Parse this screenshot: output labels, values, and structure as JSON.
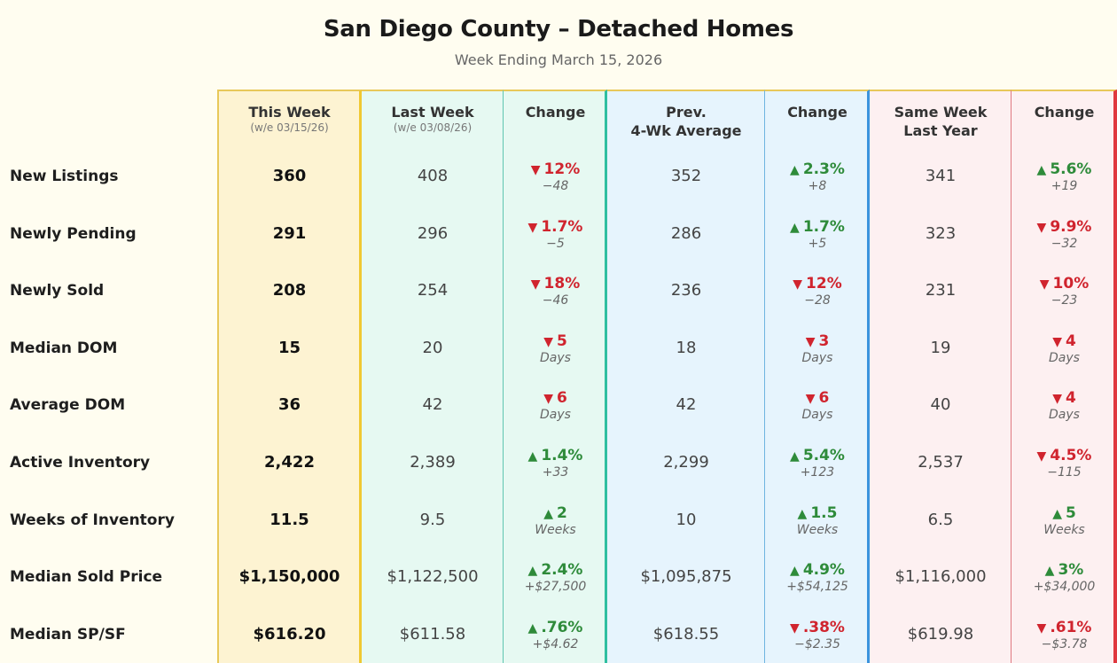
{
  "title": "San Diego County – Detached Homes",
  "subtitle": "Week Ending March 15, 2026",
  "colors": {
    "up": "#2e8b3a",
    "down": "#d0242e"
  },
  "columns": {
    "this_week": {
      "label": "This Week",
      "sub": "(w/e 03/15/26)"
    },
    "last_week": {
      "label": "Last Week",
      "sub": "(w/e 03/08/26)"
    },
    "change1": {
      "label": "Change"
    },
    "prev_avg": {
      "line1": "Prev.",
      "line2": "4-Wk Average"
    },
    "change2": {
      "label": "Change"
    },
    "same_week": {
      "line1": "Same Week",
      "line2": "Last Year"
    },
    "change3": {
      "label": "Change"
    }
  },
  "rows": [
    {
      "label": "New Listings",
      "this_week": "360",
      "last_week": "408",
      "chg1": {
        "dir": "down",
        "arrow": "▼",
        "main": "12%",
        "diff": "−48"
      },
      "prev_avg": "352",
      "chg2": {
        "dir": "up",
        "arrow": "▲",
        "main": "2.3%",
        "diff": "+8"
      },
      "same_week": "341",
      "chg3": {
        "dir": "up",
        "arrow": "▲",
        "main": "5.6%",
        "diff": "+19"
      }
    },
    {
      "label": "Newly Pending",
      "this_week": "291",
      "last_week": "296",
      "chg1": {
        "dir": "down",
        "arrow": "▼",
        "main": "1.7%",
        "diff": "−5"
      },
      "prev_avg": "286",
      "chg2": {
        "dir": "up",
        "arrow": "▲",
        "main": "1.7%",
        "diff": "+5"
      },
      "same_week": "323",
      "chg3": {
        "dir": "down",
        "arrow": "▼",
        "main": "9.9%",
        "diff": "−32"
      }
    },
    {
      "label": "Newly Sold",
      "this_week": "208",
      "last_week": "254",
      "chg1": {
        "dir": "down",
        "arrow": "▼",
        "main": "18%",
        "diff": "−46"
      },
      "prev_avg": "236",
      "chg2": {
        "dir": "down",
        "arrow": "▼",
        "main": "12%",
        "diff": "−28"
      },
      "same_week": "231",
      "chg3": {
        "dir": "down",
        "arrow": "▼",
        "main": "10%",
        "diff": "−23"
      }
    },
    {
      "label": "Median DOM",
      "this_week": "15",
      "last_week": "20",
      "chg1": {
        "dir": "down",
        "arrow": "▼",
        "main": "5",
        "diff": "Days"
      },
      "prev_avg": "18",
      "chg2": {
        "dir": "down",
        "arrow": "▼",
        "main": "3",
        "diff": "Days"
      },
      "same_week": "19",
      "chg3": {
        "dir": "down",
        "arrow": "▼",
        "main": "4",
        "diff": "Days"
      }
    },
    {
      "label": "Average DOM",
      "this_week": "36",
      "last_week": "42",
      "chg1": {
        "dir": "down",
        "arrow": "▼",
        "main": "6",
        "diff": "Days"
      },
      "prev_avg": "42",
      "chg2": {
        "dir": "down",
        "arrow": "▼",
        "main": "6",
        "diff": "Days"
      },
      "same_week": "40",
      "chg3": {
        "dir": "down",
        "arrow": "▼",
        "main": "4",
        "diff": "Days"
      }
    },
    {
      "label": "Active Inventory",
      "this_week": "2,422",
      "last_week": "2,389",
      "chg1": {
        "dir": "up",
        "arrow": "▲",
        "main": "1.4%",
        "diff": "+33"
      },
      "prev_avg": "2,299",
      "chg2": {
        "dir": "up",
        "arrow": "▲",
        "main": "5.4%",
        "diff": "+123"
      },
      "same_week": "2,537",
      "chg3": {
        "dir": "down",
        "arrow": "▼",
        "main": "4.5%",
        "diff": "−115"
      }
    },
    {
      "label": "Weeks of Inventory",
      "this_week": "11.5",
      "last_week": "9.5",
      "chg1": {
        "dir": "up",
        "arrow": "▲",
        "main": "2",
        "diff": "Weeks"
      },
      "prev_avg": "10",
      "chg2": {
        "dir": "up",
        "arrow": "▲",
        "main": "1.5",
        "diff": "Weeks"
      },
      "same_week": "6.5",
      "chg3": {
        "dir": "up",
        "arrow": "▲",
        "main": "5",
        "diff": "Weeks"
      }
    },
    {
      "label": "Median Sold Price",
      "this_week": "$1,150,000",
      "last_week": "$1,122,500",
      "chg1": {
        "dir": "up",
        "arrow": "▲",
        "main": "2.4%",
        "diff": "+$27,500"
      },
      "prev_avg": "$1,095,875",
      "chg2": {
        "dir": "up",
        "arrow": "▲",
        "main": "4.9%",
        "diff": "+$54,125"
      },
      "same_week": "$1,116,000",
      "chg3": {
        "dir": "up",
        "arrow": "▲",
        "main": "3%",
        "diff": "+$34,000"
      }
    },
    {
      "label": "Median SP/SF",
      "this_week": "$616.20",
      "last_week": "$611.58",
      "chg1": {
        "dir": "up",
        "arrow": "▲",
        "main": ".76%",
        "diff": "+$4.62"
      },
      "prev_avg": "$618.55",
      "chg2": {
        "dir": "down",
        "arrow": "▼",
        "main": ".38%",
        "diff": "−$2.35"
      },
      "same_week": "$619.98",
      "chg3": {
        "dir": "down",
        "arrow": "▼",
        "main": ".61%",
        "diff": "−$3.78"
      }
    }
  ]
}
